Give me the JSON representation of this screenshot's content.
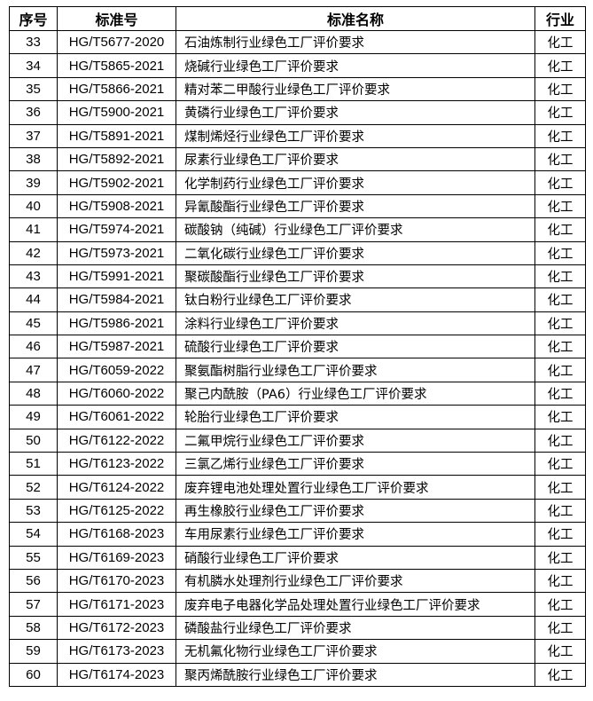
{
  "table": {
    "headers": [
      "序号",
      "标准号",
      "标准名称",
      "行业"
    ],
    "rows": [
      [
        "33",
        "HG/T5677-2020",
        "石油炼制行业绿色工厂评价要求",
        "化工"
      ],
      [
        "34",
        "HG/T5865-2021",
        "烧碱行业绿色工厂评价要求",
        "化工"
      ],
      [
        "35",
        "HG/T5866-2021",
        "精对苯二甲酸行业绿色工厂评价要求",
        "化工"
      ],
      [
        "36",
        "HG/T5900-2021",
        "黄磷行业绿色工厂评价要求",
        "化工"
      ],
      [
        "37",
        "HG/T5891-2021",
        "煤制烯烃行业绿色工厂评价要求",
        "化工"
      ],
      [
        "38",
        "HG/T5892-2021",
        "尿素行业绿色工厂评价要求",
        "化工"
      ],
      [
        "39",
        "HG/T5902-2021",
        "化学制药行业绿色工厂评价要求",
        "化工"
      ],
      [
        "40",
        "HG/T5908-2021",
        "异氰酸酯行业绿色工厂评价要求",
        "化工"
      ],
      [
        "41",
        "HG/T5974-2021",
        "碳酸钠（纯碱）行业绿色工厂评价要求",
        "化工"
      ],
      [
        "42",
        "HG/T5973-2021",
        "二氧化碳行业绿色工厂评价要求",
        "化工"
      ],
      [
        "43",
        "HG/T5991-2021",
        "聚碳酸酯行业绿色工厂评价要求",
        "化工"
      ],
      [
        "44",
        "HG/T5984-2021",
        "钛白粉行业绿色工厂评价要求",
        "化工"
      ],
      [
        "45",
        "HG/T5986-2021",
        "涂料行业绿色工厂评价要求",
        "化工"
      ],
      [
        "46",
        "HG/T5987-2021",
        "硫酸行业绿色工厂评价要求",
        "化工"
      ],
      [
        "47",
        "HG/T6059-2022",
        "聚氨酯树脂行业绿色工厂评价要求",
        "化工"
      ],
      [
        "48",
        "HG/T6060-2022",
        "聚己内酰胺（PA6）行业绿色工厂评价要求",
        "化工"
      ],
      [
        "49",
        "HG/T6061-2022",
        "轮胎行业绿色工厂评价要求",
        "化工"
      ],
      [
        "50",
        "HG/T6122-2022",
        "二氟甲烷行业绿色工厂评价要求",
        "化工"
      ],
      [
        "51",
        "HG/T6123-2022",
        "三氯乙烯行业绿色工厂评价要求",
        "化工"
      ],
      [
        "52",
        "HG/T6124-2022",
        "废弃锂电池处理处置行业绿色工厂评价要求",
        "化工"
      ],
      [
        "53",
        "HG/T6125-2022",
        "再生橡胶行业绿色工厂评价要求",
        "化工"
      ],
      [
        "54",
        "HG/T6168-2023",
        "车用尿素行业绿色工厂评价要求",
        "化工"
      ],
      [
        "55",
        "HG/T6169-2023",
        "硝酸行业绿色工厂评价要求",
        "化工"
      ],
      [
        "56",
        "HG/T6170-2023",
        "有机膦水处理剂行业绿色工厂评价要求",
        "化工"
      ],
      [
        "57",
        "HG/T6171-2023",
        "废弃电子电器化学品处理处置行业绿色工厂评价要求",
        "化工"
      ],
      [
        "58",
        "HG/T6172-2023",
        "磷酸盐行业绿色工厂评价要求",
        "化工"
      ],
      [
        "59",
        "HG/T6173-2023",
        "无机氟化物行业绿色工厂评价要求",
        "化工"
      ],
      [
        "60",
        "HG/T6174-2023",
        "聚丙烯酰胺行业绿色工厂评价要求",
        "化工"
      ]
    ]
  }
}
